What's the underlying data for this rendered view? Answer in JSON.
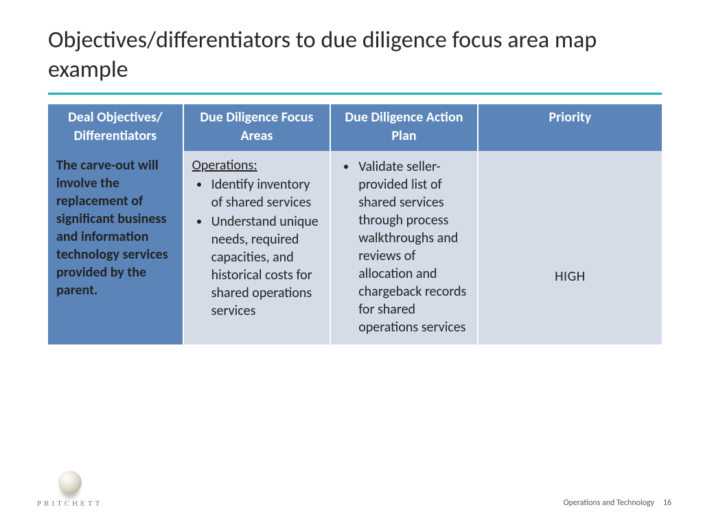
{
  "title": "Objectives/differentiators to due diligence focus area map example",
  "accent_color": "#1aaeb7",
  "table": {
    "header_bg": "#5b85b9",
    "body_bg_col0": "#5b85b9",
    "body_bg_rest": "#d5dce8",
    "col_widths_pct": [
      22,
      24,
      24,
      30
    ],
    "columns": [
      "Deal Objectives/ Differentiators",
      "Due Diligence Focus Areas",
      "Due Diligence Action Plan",
      "Priority"
    ],
    "row": {
      "objective": "The carve-out will involve the replacement of significant business and information technology services provided by the parent.",
      "focus_label": "Operations:",
      "focus_bullets": [
        "Identify inventory of shared services",
        "Understand unique needs, required capacities, and historical costs for shared operations services"
      ],
      "action_bullets": [
        "Validate seller-provided list of shared services through process walkthroughs and reviews of allocation and chargeback records for shared operations services"
      ],
      "priority": "HIGH"
    }
  },
  "footer": {
    "brand": "PRITCHETT",
    "section": "Operations and Technology",
    "page": "16"
  }
}
